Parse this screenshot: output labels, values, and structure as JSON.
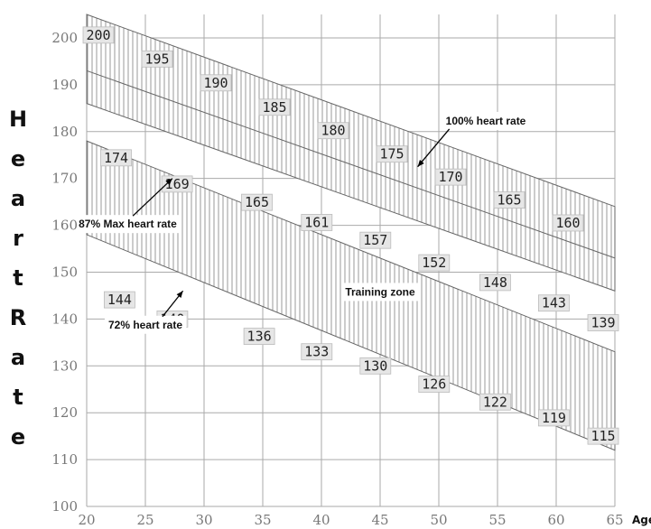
{
  "chart_data": {
    "type": "line",
    "title": "",
    "xlabel": "Age",
    "ylabel": "Heart Rate",
    "xlim": [
      20,
      65
    ],
    "ylim": [
      100,
      205
    ],
    "x_ticks": [
      20,
      25,
      30,
      35,
      40,
      45,
      50,
      55,
      60,
      65
    ],
    "y_ticks": [
      100,
      110,
      120,
      130,
      140,
      150,
      160,
      170,
      180,
      190,
      200
    ],
    "grid": true,
    "series": [
      {
        "name": "100% heart rate",
        "x": [
          20,
          25,
          30,
          35,
          40,
          45,
          50,
          55,
          60,
          65
        ],
        "y": [
          200,
          195,
          190,
          185,
          180,
          175,
          170,
          165,
          160,
          155
        ],
        "band": [
          [
            20,
            186,
            205
          ],
          [
            65,
            146,
            164
          ]
        ]
      },
      {
        "name": "87% Max heart rate",
        "x": [
          20,
          65
        ],
        "y": [
          174,
          135
        ]
      },
      {
        "name": "72% heart rate",
        "x": [
          20,
          65
        ],
        "y": [
          144,
          112
        ]
      }
    ],
    "training_band": [
      [
        20,
        158,
        178
      ],
      [
        65,
        112,
        133
      ]
    ],
    "labels": [
      {
        "text": "200",
        "x": 21,
        "y": 200.6
      },
      {
        "text": "195",
        "x": 26,
        "y": 195.5
      },
      {
        "text": "190",
        "x": 31,
        "y": 190.4
      },
      {
        "text": "185",
        "x": 36,
        "y": 185.2
      },
      {
        "text": "180",
        "x": 41,
        "y": 180.2
      },
      {
        "text": "175",
        "x": 46,
        "y": 175.2
      },
      {
        "text": "170",
        "x": 51,
        "y": 170.3
      },
      {
        "text": "165",
        "x": 56,
        "y": 165.4
      },
      {
        "text": "160",
        "x": 61,
        "y": 160.5
      },
      {
        "text": "174",
        "x": 22.5,
        "y": 174.4
      },
      {
        "text": "169",
        "x": 27.7,
        "y": 168.8
      },
      {
        "text": "165",
        "x": 34.5,
        "y": 164.9
      },
      {
        "text": "161",
        "x": 39.6,
        "y": 160.6
      },
      {
        "text": "157",
        "x": 44.6,
        "y": 156.8
      },
      {
        "text": "152",
        "x": 49.6,
        "y": 152.0
      },
      {
        "text": "148",
        "x": 54.8,
        "y": 147.8
      },
      {
        "text": "143",
        "x": 59.8,
        "y": 143.4
      },
      {
        "text": "139",
        "x": 64.0,
        "y": 139.2
      },
      {
        "text": "144",
        "x": 22.8,
        "y": 144.1
      },
      {
        "text": "140",
        "x": 27.3,
        "y": 140.0
      },
      {
        "text": "136",
        "x": 34.7,
        "y": 136.3
      },
      {
        "text": "133",
        "x": 39.6,
        "y": 133.0
      },
      {
        "text": "130",
        "x": 44.6,
        "y": 130.0
      },
      {
        "text": "126",
        "x": 49.6,
        "y": 126.1
      },
      {
        "text": "122",
        "x": 54.8,
        "y": 122.3
      },
      {
        "text": "119",
        "x": 59.8,
        "y": 118.9
      },
      {
        "text": "115",
        "x": 64.0,
        "y": 115.0
      }
    ],
    "annotations": [
      {
        "text": "100% heart rate",
        "x": 54,
        "y": 181.5,
        "arrow_to": [
          48.2,
          172.5
        ]
      },
      {
        "text": "87% Max heart rate",
        "x": 23.5,
        "y": 159.5,
        "arrow_to": [
          27.3,
          170
        ]
      },
      {
        "text": "72% heart rate",
        "x": 25,
        "y": 138,
        "arrow_to": [
          28.2,
          146
        ]
      },
      {
        "text": "Training zone",
        "x": 45,
        "y": 145,
        "arrow_to": null
      }
    ]
  },
  "colors": {
    "grid": "#aaaaaa",
    "band_stroke": "#666666",
    "hatch": "#999999",
    "label_bg": "#e6e6e6"
  }
}
